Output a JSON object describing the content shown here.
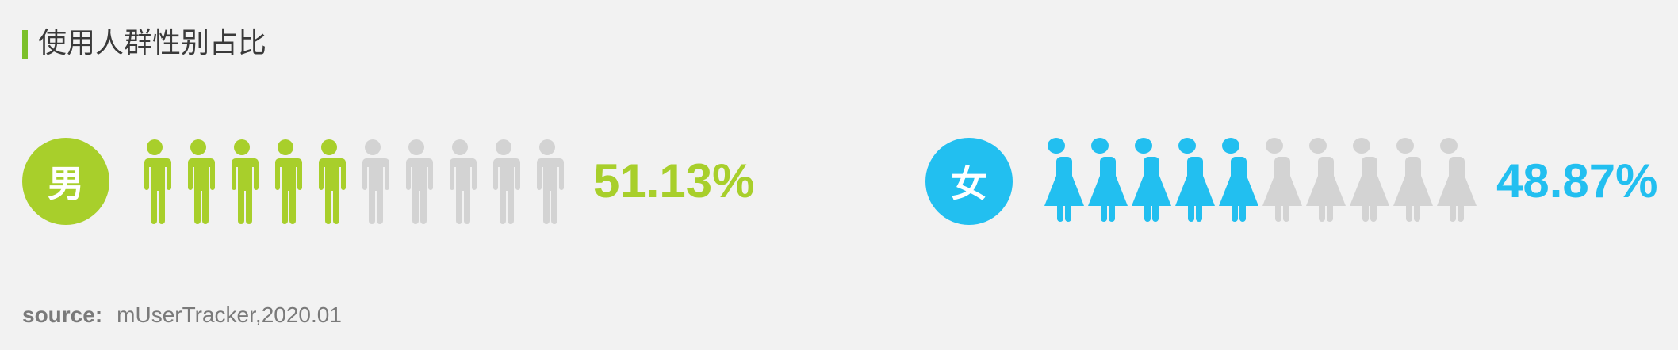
{
  "title": "使用人群性别占比",
  "colors": {
    "accent_bar": "#7cc02a",
    "male": "#a8cf2b",
    "female": "#22bff0",
    "inactive": "#d3d3d3"
  },
  "chart_data": {
    "type": "pictogram",
    "icons_per_group": 10,
    "groups": [
      {
        "label": "男",
        "value": 51.13,
        "value_label": "51.13%",
        "filled_icons": 5,
        "icon": "male-figure-icon"
      },
      {
        "label": "女",
        "value": 48.87,
        "value_label": "48.87%",
        "filled_icons": 5,
        "icon": "female-figure-icon"
      }
    ]
  },
  "source": {
    "label": "source:",
    "value": "mUserTracker,2020.01"
  }
}
